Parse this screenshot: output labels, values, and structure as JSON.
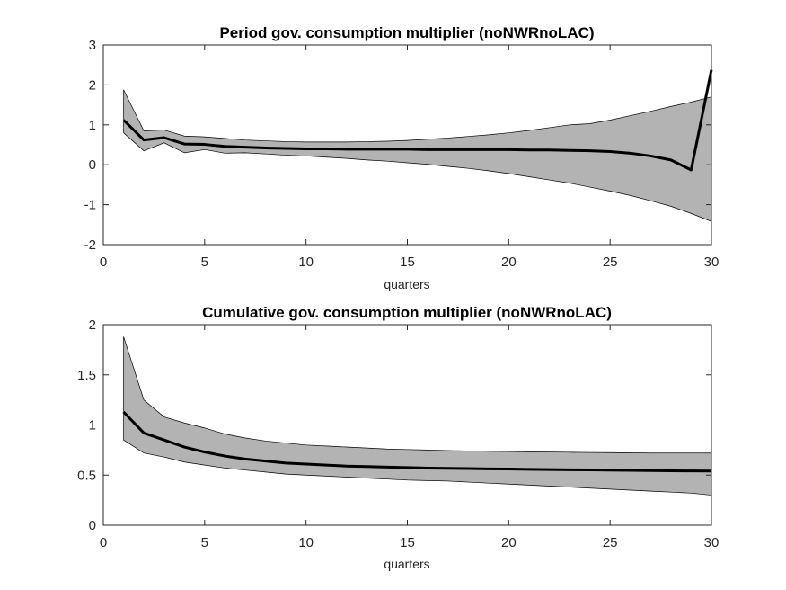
{
  "chart_data": [
    {
      "type": "area",
      "title": "Period gov. consumption multiplier (noNWRnoLAC)",
      "xlabel": "quarters",
      "ylabel": "",
      "xlim": [
        0,
        30
      ],
      "ylim": [
        -2,
        3
      ],
      "xticks": [
        "0",
        "5",
        "10",
        "15",
        "20",
        "25",
        "30"
      ],
      "yticks": [
        "-2",
        "-1",
        "0",
        "1",
        "2",
        "3"
      ],
      "grid": false,
      "legend": "none",
      "colors": {
        "band": "#b3b3b3",
        "line": "#000000"
      },
      "x": [
        1,
        2,
        3,
        4,
        5,
        6,
        7,
        8,
        9,
        10,
        11,
        12,
        13,
        14,
        15,
        16,
        17,
        18,
        19,
        20,
        21,
        22,
        23,
        24,
        25,
        26,
        27,
        28,
        29,
        30
      ],
      "series": [
        {
          "role": "median",
          "values": [
            1.12,
            0.62,
            0.68,
            0.52,
            0.51,
            0.46,
            0.44,
            0.42,
            0.41,
            0.4,
            0.4,
            0.39,
            0.39,
            0.39,
            0.39,
            0.38,
            0.38,
            0.38,
            0.38,
            0.38,
            0.37,
            0.37,
            0.36,
            0.35,
            0.33,
            0.29,
            0.22,
            0.12,
            -0.13,
            2.38
          ]
        },
        {
          "role": "upper",
          "values": [
            1.88,
            0.85,
            0.87,
            0.72,
            0.7,
            0.66,
            0.62,
            0.6,
            0.58,
            0.57,
            0.57,
            0.57,
            0.58,
            0.59,
            0.61,
            0.64,
            0.67,
            0.71,
            0.75,
            0.8,
            0.86,
            0.93,
            1.0,
            1.03,
            1.12,
            1.23,
            1.34,
            1.46,
            1.57,
            1.7
          ]
        },
        {
          "role": "lower",
          "values": [
            0.8,
            0.35,
            0.55,
            0.3,
            0.38,
            0.29,
            0.3,
            0.27,
            0.24,
            0.22,
            0.19,
            0.16,
            0.12,
            0.09,
            0.05,
            0.01,
            -0.04,
            -0.09,
            -0.15,
            -0.22,
            -0.3,
            -0.38,
            -0.46,
            -0.56,
            -0.66,
            -0.77,
            -0.9,
            -1.04,
            -1.22,
            -1.42
          ]
        }
      ]
    },
    {
      "type": "area",
      "title": "Cumulative gov. consumption multiplier (noNWRnoLAC)",
      "xlabel": "quarters",
      "ylabel": "",
      "xlim": [
        0,
        30
      ],
      "ylim": [
        0,
        2
      ],
      "xticks": [
        "0",
        "5",
        "10",
        "15",
        "20",
        "25",
        "30"
      ],
      "yticks": [
        "0",
        "0.5",
        "1",
        "1.5",
        "2"
      ],
      "grid": false,
      "legend": "none",
      "colors": {
        "band": "#b3b3b3",
        "line": "#000000"
      },
      "x": [
        1,
        2,
        3,
        4,
        5,
        6,
        7,
        8,
        9,
        10,
        11,
        12,
        13,
        14,
        15,
        16,
        17,
        18,
        19,
        20,
        21,
        22,
        23,
        24,
        25,
        26,
        27,
        28,
        29,
        30
      ],
      "series": [
        {
          "role": "median",
          "values": [
            1.13,
            0.92,
            0.85,
            0.78,
            0.73,
            0.69,
            0.66,
            0.64,
            0.62,
            0.61,
            0.6,
            0.59,
            0.585,
            0.58,
            0.575,
            0.57,
            0.567,
            0.565,
            0.562,
            0.56,
            0.557,
            0.555,
            0.553,
            0.551,
            0.549,
            0.547,
            0.545,
            0.543,
            0.541,
            0.54
          ]
        },
        {
          "role": "upper",
          "values": [
            1.88,
            1.25,
            1.08,
            1.02,
            0.97,
            0.91,
            0.87,
            0.84,
            0.82,
            0.8,
            0.79,
            0.78,
            0.77,
            0.76,
            0.755,
            0.75,
            0.745,
            0.74,
            0.737,
            0.735,
            0.732,
            0.73,
            0.728,
            0.726,
            0.724,
            0.722,
            0.72,
            0.72,
            0.72,
            0.72
          ]
        },
        {
          "role": "lower",
          "values": [
            0.85,
            0.72,
            0.68,
            0.63,
            0.6,
            0.57,
            0.55,
            0.53,
            0.51,
            0.5,
            0.49,
            0.48,
            0.47,
            0.46,
            0.45,
            0.445,
            0.44,
            0.43,
            0.42,
            0.41,
            0.4,
            0.39,
            0.38,
            0.37,
            0.36,
            0.35,
            0.34,
            0.33,
            0.32,
            0.3
          ]
        }
      ]
    }
  ]
}
